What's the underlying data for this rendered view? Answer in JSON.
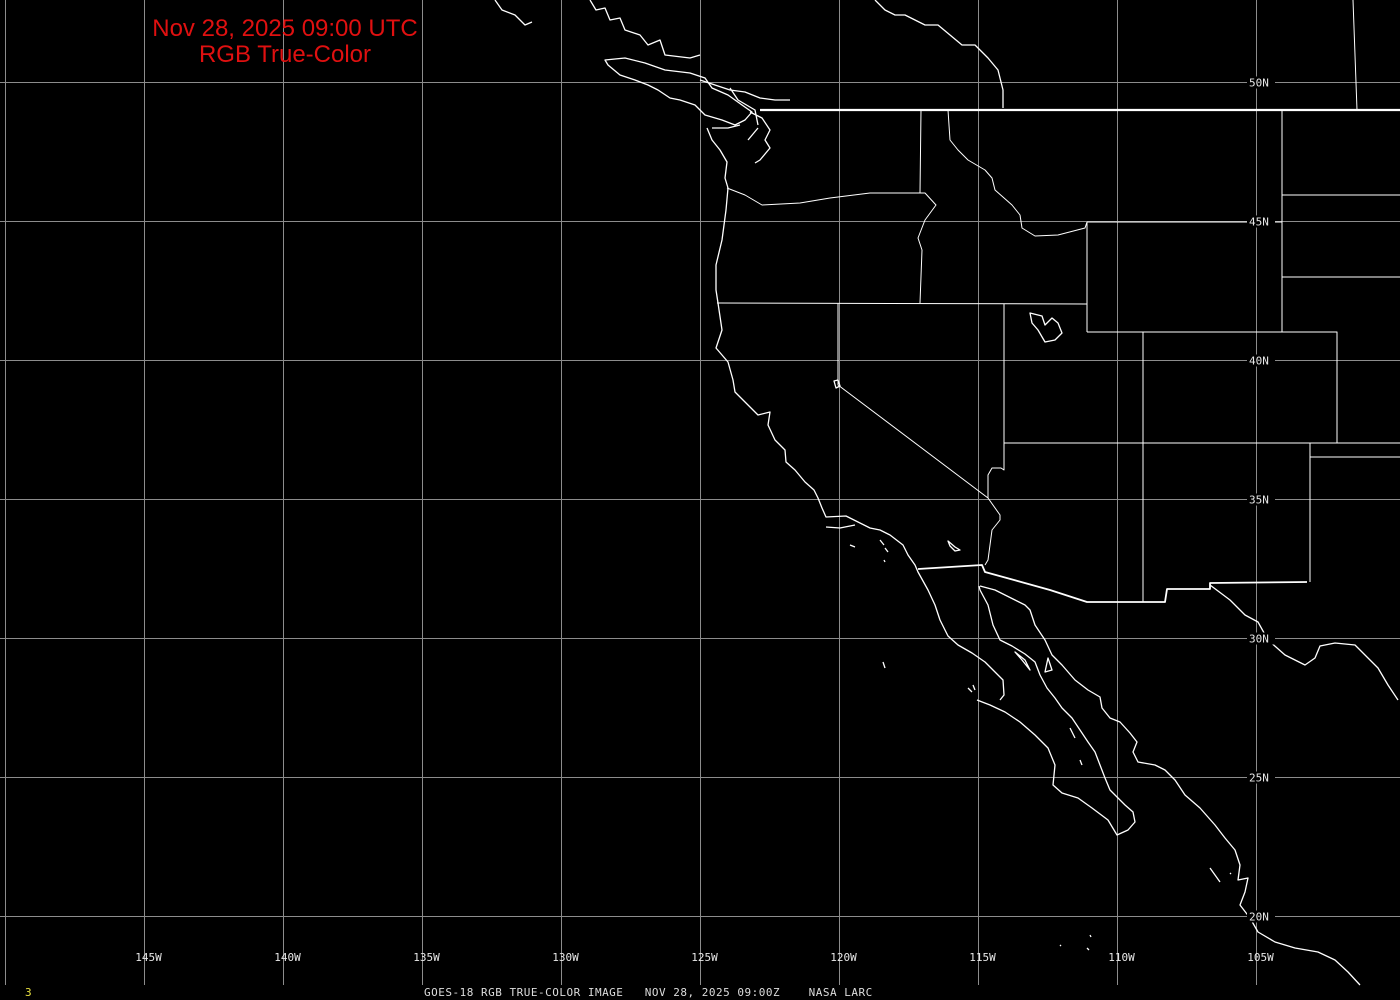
{
  "title": {
    "line1": "Nov 28, 2025 09:00 UTC",
    "line2": "RGB True-Color"
  },
  "map": {
    "projection": "equirectangular",
    "longitudes": [
      -145,
      -140,
      -135,
      -130,
      -125,
      -120,
      -115,
      -110,
      -105
    ],
    "longitude_labels": [
      "145W",
      "140W",
      "135W",
      "130W",
      "125W",
      "120W",
      "115W",
      "110W",
      "105W"
    ],
    "latitudes": [
      50,
      45,
      40,
      35,
      30,
      25,
      20
    ],
    "latitude_labels": [
      "50N",
      "45N",
      "40N",
      "35N",
      "30N",
      "25N",
      "20N"
    ],
    "grid_color": "#8c8c8c",
    "boundary_color": "#ffffff",
    "background_color": "#000000"
  },
  "footer": {
    "frame_number": "3",
    "caption": "GOES-18 RGB TRUE-COLOR IMAGE   NOV 28, 2025 09:00Z    NASA LARC"
  },
  "colors": {
    "title": "#e01010",
    "frame_number": "#e8e040"
  }
}
